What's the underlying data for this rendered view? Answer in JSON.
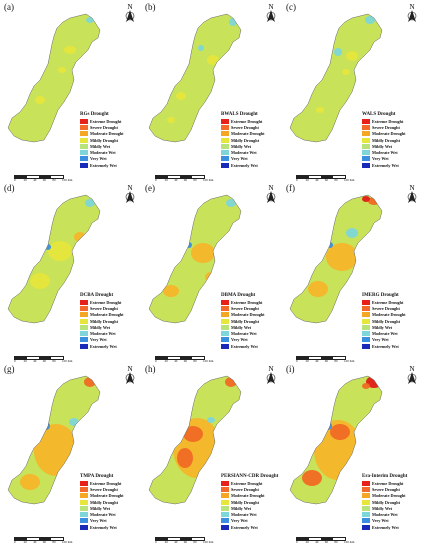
{
  "legend_classes": [
    {
      "label": "Extreme Drought",
      "color": "#e8201a"
    },
    {
      "label": "Severe Drought",
      "color": "#f46a2a"
    },
    {
      "label": "Moderate Drought",
      "color": "#f5a623"
    },
    {
      "label": "Mildly Drought",
      "color": "#e6e63c"
    },
    {
      "label": "Mildly Wet",
      "color": "#b8e27a"
    },
    {
      "label": "Moderate Wet",
      "color": "#7fd6d8"
    },
    {
      "label": "Very Wet",
      "color": "#3a8fe0"
    },
    {
      "label": "Extremely Wet",
      "color": "#1a2ab8"
    }
  ],
  "base_colors": {
    "near_normal": "#c8e25a",
    "mild_drought": "#e6e63c",
    "moderate_drought": "#f5b52a",
    "severe_drought": "#f06a24",
    "extreme_drought": "#e01e18",
    "wet": "#7fd6d8",
    "very_wet": "#3a8fe0"
  },
  "panels": [
    {
      "label": "(a)",
      "title": "RGs Drought",
      "scale": [
        "0",
        "20",
        "40",
        "60",
        "80",
        "100 Km"
      ]
    },
    {
      "label": "(b)",
      "title": "BWALS Drought",
      "scale": [
        "0",
        "20",
        "40",
        "60",
        "80",
        "100 Km"
      ]
    },
    {
      "label": "(c)",
      "title": "WALS Drought",
      "scale": [
        "0",
        "20",
        "40",
        "60",
        "80",
        "100 Km"
      ]
    },
    {
      "label": "(d)",
      "title": "DCBA Drought",
      "scale": [
        "0",
        "20",
        "40",
        "60",
        "80",
        "100 Km"
      ]
    },
    {
      "label": "(e)",
      "title": "DBMA Drought",
      "scale": [
        "0",
        "20",
        "40",
        "60",
        "80",
        "100 Km"
      ]
    },
    {
      "label": "(f)",
      "title": "IMERG Drought",
      "scale": [
        "0",
        "20",
        "40",
        "60",
        "80",
        "100 Km"
      ]
    },
    {
      "label": "(g)",
      "title": "TMPA Drought",
      "scale": [
        "0",
        "20",
        "40",
        "60",
        "80",
        "100 Km"
      ]
    },
    {
      "label": "(h)",
      "title": "PERSIANN-CDR Drought",
      "scale": [
        "0",
        "20",
        "40",
        "60",
        "80",
        "100 Km"
      ]
    },
    {
      "label": "(i)",
      "title": "Era-Interim Drought",
      "scale": [
        "0",
        "20",
        "40",
        "60",
        "80",
        "100 Km"
      ]
    }
  ],
  "north_arrow_icon": "north-arrow-icon"
}
